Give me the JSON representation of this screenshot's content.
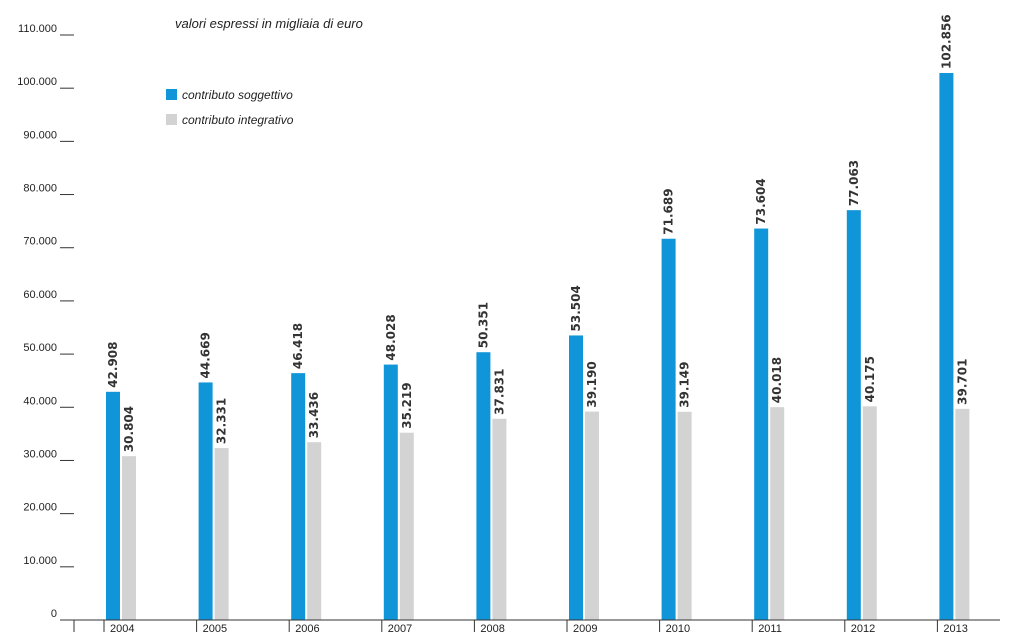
{
  "chart_data": {
    "type": "bar",
    "subtitle": "valori espressi in migliaia di euro",
    "categories": [
      "2004",
      "2005",
      "2006",
      "2007",
      "2008",
      "2009",
      "2010",
      "2011",
      "2012",
      "2013"
    ],
    "series": [
      {
        "name": "contributo soggettivo",
        "color": "#0f95d8",
        "values": [
          42908,
          44669,
          46418,
          48028,
          50351,
          53504,
          71689,
          73604,
          77063,
          102856
        ],
        "labels": [
          "42.908",
          "44.669",
          "46.418",
          "48.028",
          "50.351",
          "53.504",
          "71.689",
          "73.604",
          "77.063",
          "102.856"
        ]
      },
      {
        "name": "contributo integrativo",
        "color": "#d3d3d3",
        "values": [
          30804,
          32331,
          33436,
          35219,
          37831,
          39190,
          39149,
          40018,
          40175,
          39701
        ],
        "labels": [
          "30.804",
          "32.331",
          "33.436",
          "35.219",
          "37.831",
          "39.190",
          "39.149",
          "40.018",
          "40.175",
          "39.701"
        ]
      }
    ],
    "ylim": [
      0,
      110000
    ],
    "yticks": [
      0,
      10000,
      20000,
      30000,
      40000,
      50000,
      60000,
      70000,
      80000,
      90000,
      100000,
      110000
    ],
    "ytick_labels": [
      "0",
      "10.000",
      "20.000",
      "30.000",
      "40.000",
      "50.000",
      "60.000",
      "70.000",
      "80.000",
      "90.000",
      "100.000",
      "110.000"
    ],
    "legend": "top-left",
    "grid": false
  }
}
